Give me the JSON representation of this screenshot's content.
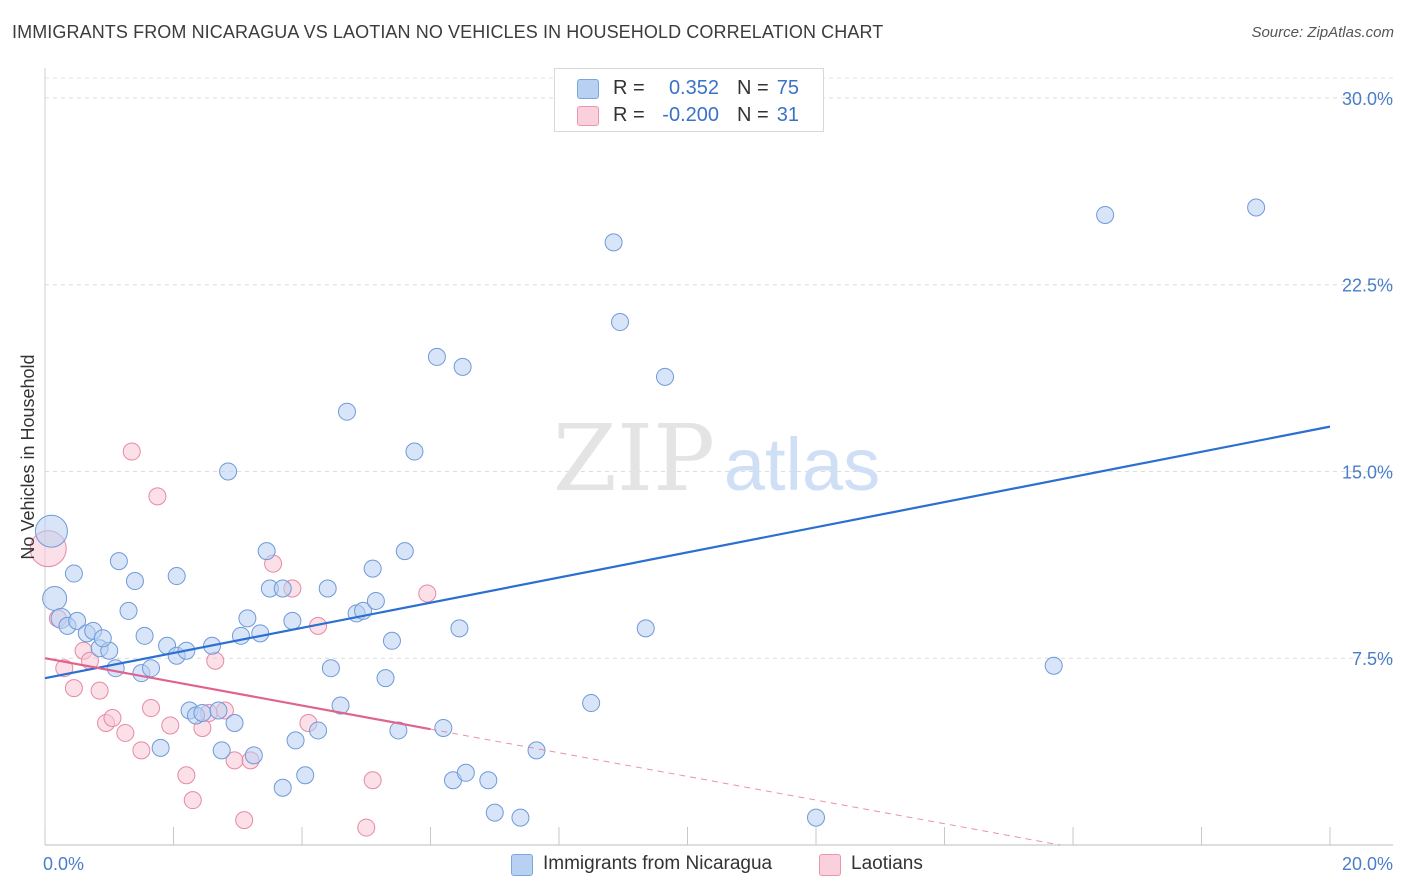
{
  "header": {
    "title": "IMMIGRANTS FROM NICARAGUA VS LAOTIAN NO VEHICLES IN HOUSEHOLD CORRELATION CHART",
    "source": "Source: ZipAtlas.com"
  },
  "legend": {
    "rows": [
      {
        "r_label": "R =",
        "r_value": "0.352",
        "n_label": "N =",
        "n_value": "75",
        "color": "#a9c6ef",
        "stroke": "#7ea6de"
      },
      {
        "r_label": "R =",
        "r_value": "-0.200",
        "n_label": "N =",
        "n_value": "31",
        "color": "#f7bfd0",
        "stroke": "#eb94ae"
      }
    ]
  },
  "bottom_legend": {
    "items": [
      {
        "label": "Immigrants from Nicaragua",
        "color": "#b8d0f2",
        "stroke": "#7ea6de"
      },
      {
        "label": "Laotians",
        "color": "#fbd0dd",
        "stroke": "#eb94ae"
      }
    ]
  },
  "watermark": {
    "part1": "ZIP",
    "part2": "atlas"
  },
  "chart_data": {
    "type": "scatter",
    "xlabel": "",
    "ylabel": "No Vehicles in Household",
    "xlim": [
      0,
      20
    ],
    "ylim": [
      0,
      30
    ],
    "x_tick_labels": [
      "0.0%",
      "20.0%"
    ],
    "y_ticks": [
      7.5,
      15.0,
      22.5,
      30.0
    ],
    "y_tick_labels": [
      "7.5%",
      "15.0%",
      "22.5%",
      "30.0%"
    ],
    "grid": "horizontal dashed",
    "colors": {
      "blue_fill": "#b8d0f2",
      "blue_stroke": "#6f9ad8",
      "blue_line": "#2a6fd1",
      "pink_fill": "#f9c6d5",
      "pink_stroke": "#e58aa6",
      "pink_line": "#e0628d"
    },
    "series": [
      {
        "name": "Immigrants from Nicaragua",
        "trend": {
          "x": [
            0,
            20
          ],
          "y": [
            6.7,
            16.8
          ],
          "solid_until": 20
        },
        "points": [
          [
            0.1,
            12.6
          ],
          [
            0.15,
            9.9
          ],
          [
            0.25,
            9.1
          ],
          [
            0.45,
            10.9
          ],
          [
            0.35,
            8.8
          ],
          [
            0.5,
            9.0
          ],
          [
            0.65,
            8.5
          ],
          [
            0.75,
            8.6
          ],
          [
            0.85,
            7.9
          ],
          [
            1.0,
            7.8
          ],
          [
            0.9,
            8.3
          ],
          [
            1.1,
            7.1
          ],
          [
            1.15,
            11.4
          ],
          [
            1.3,
            9.4
          ],
          [
            1.4,
            10.6
          ],
          [
            1.5,
            6.9
          ],
          [
            1.55,
            8.4
          ],
          [
            1.65,
            7.1
          ],
          [
            1.8,
            3.9
          ],
          [
            1.9,
            8.0
          ],
          [
            2.05,
            7.6
          ],
          [
            2.05,
            10.8
          ],
          [
            2.2,
            7.8
          ],
          [
            2.25,
            5.4
          ],
          [
            2.35,
            5.2
          ],
          [
            2.45,
            5.3
          ],
          [
            2.6,
            8.0
          ],
          [
            2.7,
            5.4
          ],
          [
            2.75,
            3.8
          ],
          [
            2.85,
            15.0
          ],
          [
            2.95,
            4.9
          ],
          [
            3.05,
            8.4
          ],
          [
            3.15,
            9.1
          ],
          [
            3.25,
            3.6
          ],
          [
            3.35,
            8.5
          ],
          [
            3.45,
            11.8
          ],
          [
            3.5,
            10.3
          ],
          [
            3.7,
            10.3
          ],
          [
            3.7,
            2.3
          ],
          [
            3.85,
            9.0
          ],
          [
            3.9,
            4.2
          ],
          [
            4.05,
            2.8
          ],
          [
            4.25,
            4.6
          ],
          [
            4.4,
            10.3
          ],
          [
            4.45,
            7.1
          ],
          [
            4.6,
            5.6
          ],
          [
            4.7,
            17.4
          ],
          [
            4.85,
            9.3
          ],
          [
            4.95,
            9.4
          ],
          [
            5.1,
            11.1
          ],
          [
            5.15,
            9.8
          ],
          [
            5.3,
            6.7
          ],
          [
            5.4,
            8.2
          ],
          [
            5.5,
            4.6
          ],
          [
            5.6,
            11.8
          ],
          [
            5.75,
            15.8
          ],
          [
            6.1,
            19.6
          ],
          [
            6.2,
            4.7
          ],
          [
            6.35,
            2.6
          ],
          [
            6.45,
            8.7
          ],
          [
            6.5,
            19.2
          ],
          [
            6.55,
            2.9
          ],
          [
            6.9,
            2.6
          ],
          [
            7.0,
            1.3
          ],
          [
            7.4,
            1.1
          ],
          [
            7.65,
            3.8
          ],
          [
            8.5,
            5.7
          ],
          [
            8.85,
            24.2
          ],
          [
            8.95,
            21.0
          ],
          [
            9.35,
            8.7
          ],
          [
            9.65,
            18.8
          ],
          [
            12.0,
            1.1
          ],
          [
            15.7,
            7.2
          ],
          [
            16.5,
            25.3
          ],
          [
            18.85,
            25.6
          ]
        ],
        "sizes": {
          "0": 16,
          "1": 12,
          "2": 10
        }
      },
      {
        "name": "Laotians",
        "trend": {
          "x": [
            0,
            15.8
          ],
          "y": [
            7.5,
            0.0
          ],
          "solid_until": 6.0
        },
        "points": [
          [
            0.05,
            11.9
          ],
          [
            0.2,
            9.1
          ],
          [
            0.3,
            7.1
          ],
          [
            0.45,
            6.3
          ],
          [
            0.6,
            7.8
          ],
          [
            0.7,
            7.4
          ],
          [
            0.85,
            6.2
          ],
          [
            0.95,
            4.9
          ],
          [
            1.05,
            5.1
          ],
          [
            1.25,
            4.5
          ],
          [
            1.35,
            15.8
          ],
          [
            1.5,
            3.8
          ],
          [
            1.65,
            5.5
          ],
          [
            1.75,
            14.0
          ],
          [
            1.95,
            4.8
          ],
          [
            2.2,
            2.8
          ],
          [
            2.3,
            1.8
          ],
          [
            2.45,
            4.7
          ],
          [
            2.55,
            5.3
          ],
          [
            2.65,
            7.4
          ],
          [
            2.8,
            5.4
          ],
          [
            2.95,
            3.4
          ],
          [
            3.1,
            1.0
          ],
          [
            3.2,
            3.4
          ],
          [
            3.55,
            11.3
          ],
          [
            3.85,
            10.3
          ],
          [
            4.1,
            4.9
          ],
          [
            4.25,
            8.8
          ],
          [
            5.0,
            0.7
          ],
          [
            5.1,
            2.6
          ],
          [
            5.95,
            10.1
          ]
        ],
        "sizes": {
          "0": 18
        }
      }
    ]
  }
}
